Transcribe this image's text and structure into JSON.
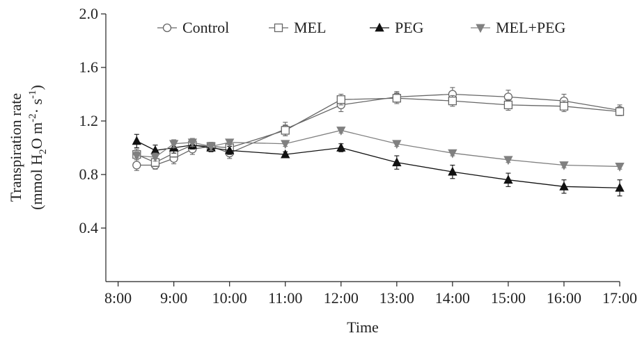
{
  "chart_data": {
    "type": "line",
    "xlabel": "Time",
    "ylabel_line1": "Transpiration rate",
    "ylabel_line2": {
      "pre": "(mmol H",
      "sub": "2",
      "mid1": "O m",
      "sup1": "-2",
      "mid2": "· s",
      "sup2": "-1",
      "post": ")"
    },
    "xlim_hours": [
      "8:00",
      "17:00"
    ],
    "ylim": [
      0.0,
      2.0
    ],
    "x_ticks": [
      "8:00",
      "9:00",
      "10:00",
      "11:00",
      "12:00",
      "13:00",
      "14:00",
      "15:00",
      "16:00",
      "17:00"
    ],
    "y_ticks": [
      "0.4",
      "0.8",
      "1.2",
      "1.6",
      "2.0"
    ],
    "grid": false,
    "legend_position": "top",
    "series": [
      {
        "name": "Control",
        "marker": "circle-open",
        "color": "#666666",
        "x": [
          "8:20",
          "8:40",
          "9:00",
          "9:20",
          "9:40",
          "10:00",
          "11:00",
          "12:00",
          "13:00",
          "14:00",
          "15:00",
          "16:00",
          "17:00"
        ],
        "y": [
          0.87,
          0.87,
          0.92,
          0.99,
          1.01,
          0.96,
          1.14,
          1.32,
          1.38,
          1.4,
          1.38,
          1.35,
          1.28
        ],
        "err": [
          0.04,
          0.03,
          0.04,
          0.04,
          0.03,
          0.04,
          0.05,
          0.05,
          0.04,
          0.05,
          0.05,
          0.05,
          0.04
        ]
      },
      {
        "name": "MEL",
        "marker": "square-open",
        "color": "#666666",
        "x": [
          "8:20",
          "8:40",
          "9:00",
          "9:20",
          "9:40",
          "10:00",
          "11:00",
          "12:00",
          "13:00",
          "14:00",
          "15:00",
          "16:00",
          "17:00"
        ],
        "y": [
          0.95,
          0.89,
          0.96,
          1.02,
          1.01,
          1.0,
          1.13,
          1.36,
          1.37,
          1.35,
          1.32,
          1.31,
          1.27
        ],
        "err": [
          0.04,
          0.03,
          0.03,
          0.03,
          0.03,
          0.03,
          0.04,
          0.04,
          0.04,
          0.04,
          0.04,
          0.04,
          0.03
        ]
      },
      {
        "name": "PEG",
        "marker": "triangle-up-filled",
        "color": "#111111",
        "x": [
          "8:20",
          "8:40",
          "9:00",
          "9:20",
          "9:40",
          "10:00",
          "11:00",
          "12:00",
          "13:00",
          "14:00",
          "15:00",
          "16:00",
          "17:00"
        ],
        "y": [
          1.05,
          0.98,
          1.0,
          1.02,
          1.0,
          0.98,
          0.95,
          1.0,
          0.89,
          0.82,
          0.76,
          0.71,
          0.7
        ],
        "err": [
          0.05,
          0.04,
          0.04,
          0.03,
          0.03,
          0.03,
          0.02,
          0.03,
          0.05,
          0.05,
          0.05,
          0.05,
          0.06
        ]
      },
      {
        "name": "MEL+PEG",
        "marker": "triangle-down-filled",
        "color": "#808080",
        "x": [
          "8:20",
          "8:40",
          "9:00",
          "9:20",
          "9:40",
          "10:00",
          "11:00",
          "12:00",
          "13:00",
          "14:00",
          "15:00",
          "16:00",
          "17:00"
        ],
        "y": [
          0.94,
          0.93,
          1.03,
          1.04,
          1.01,
          1.04,
          1.03,
          1.13,
          1.03,
          0.96,
          0.91,
          0.87,
          0.86
        ],
        "err": [
          0.03,
          0.03,
          0.03,
          0.03,
          0.03,
          0.02,
          0.02,
          0.02,
          0.02,
          0.02,
          0.02,
          0.02,
          0.02
        ]
      }
    ]
  }
}
